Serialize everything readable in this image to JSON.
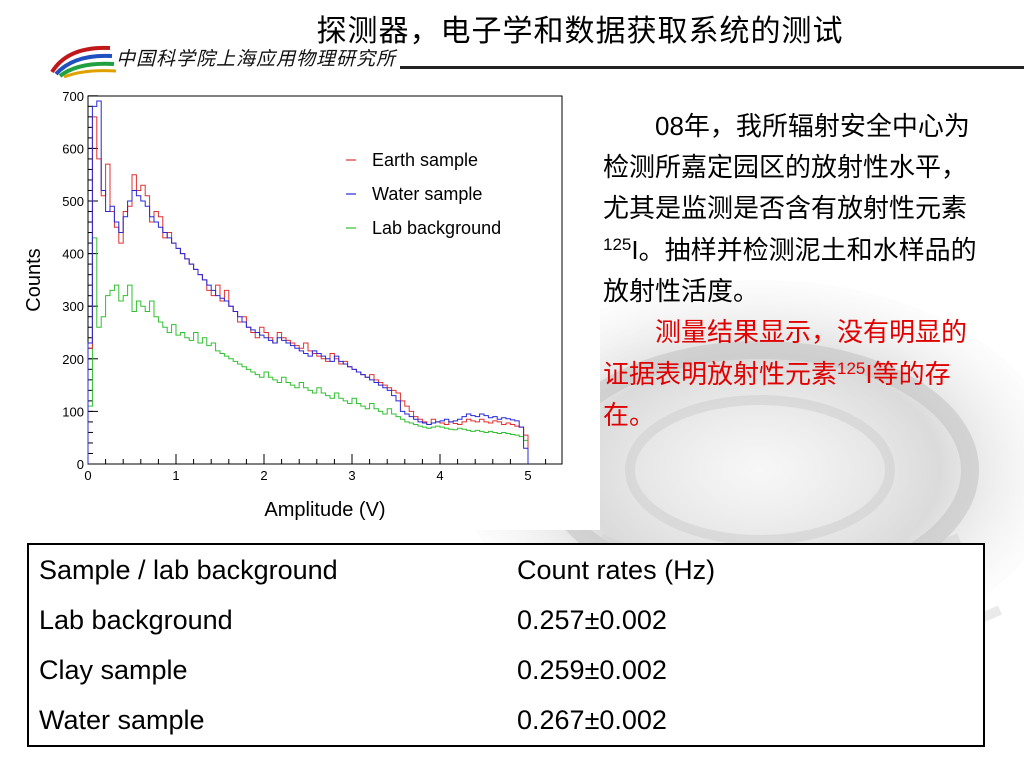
{
  "slide": {
    "title": "探测器，电子学和数据获取系统的测试",
    "institute": "中国科学院上海应用物理研究所"
  },
  "text_block": {
    "para1_year": "08",
    "para1_main": "年，我所辐射安全中心为检测所嘉定园区的放射性水平，尤其是监测是否含有放射性元素",
    "para1_mass": "125",
    "para1_elem": "I",
    "para1_tail": "。抽样并检测泥土和水样品的放射性活度。",
    "para2_main": "测量结果显示，没有明显的证据表明放射性元素",
    "para2_mass": "125",
    "para2_elem": "I",
    "para2_tail": "等的存在。"
  },
  "table": {
    "headers": [
      "Sample / lab background",
      "Count rates (Hz)"
    ],
    "rows": [
      [
        "Lab background",
        "0.257±0.002"
      ],
      [
        "Clay sample",
        "0.259±0.002"
      ],
      [
        "Water sample",
        "0.267±0.002"
      ]
    ]
  },
  "colors": {
    "earth": "#e03030",
    "water": "#2828d8",
    "lab": "#30c030",
    "highlight_text": "#e00000"
  },
  "chart_data": {
    "type": "line",
    "step": true,
    "xlabel": "Amplitude (V)",
    "ylabel": "Counts",
    "xlim": [
      0,
      5.4
    ],
    "ylim": [
      0,
      700
    ],
    "x_ticks": [
      0,
      1,
      2,
      3,
      4,
      5
    ],
    "y_ticks": [
      0,
      100,
      200,
      300,
      400,
      500,
      600,
      700
    ],
    "grid": false,
    "legend_position": "top-right",
    "bin_width": 0.05,
    "x_start": 0.0,
    "series": [
      {
        "name": "Earth sample",
        "color_key": "earth",
        "values": [
          220,
          660,
          580,
          510,
          570,
          480,
          450,
          420,
          480,
          490,
          550,
          520,
          530,
          510,
          460,
          480,
          470,
          430,
          440,
          420,
          410,
          400,
          390,
          380,
          370,
          360,
          350,
          330,
          320,
          340,
          310,
          330,
          300,
          290,
          270,
          280,
          260,
          250,
          240,
          260,
          250,
          240,
          230,
          250,
          240,
          235,
          230,
          225,
          220,
          230,
          215,
          210,
          205,
          200,
          195,
          210,
          200,
          190,
          195,
          185,
          180,
          175,
          170,
          165,
          170,
          160,
          155,
          150,
          145,
          140,
          135,
          120,
          110,
          100,
          90,
          85,
          80,
          75,
          85,
          80,
          78,
          75,
          80,
          77,
          75,
          80,
          85,
          82,
          80,
          85,
          80,
          78,
          82,
          80,
          75,
          78,
          75,
          72,
          70,
          55
        ]
      },
      {
        "name": "Water sample",
        "color_key": "water",
        "values": [
          230,
          680,
          690,
          520,
          480,
          490,
          460,
          440,
          470,
          500,
          520,
          510,
          500,
          490,
          470,
          460,
          450,
          440,
          430,
          420,
          410,
          400,
          390,
          380,
          370,
          360,
          350,
          340,
          330,
          320,
          315,
          310,
          300,
          290,
          280,
          270,
          260,
          255,
          250,
          245,
          240,
          235,
          230,
          240,
          235,
          230,
          225,
          220,
          215,
          210,
          205,
          215,
          210,
          205,
          200,
          195,
          205,
          195,
          190,
          185,
          180,
          175,
          170,
          165,
          160,
          155,
          150,
          145,
          140,
          130,
          120,
          100,
          95,
          90,
          85,
          80,
          78,
          75,
          78,
          80,
          82,
          85,
          80,
          82,
          85,
          90,
          95,
          92,
          90,
          95,
          92,
          88,
          90,
          85,
          88,
          86,
          84,
          82,
          70,
          30
        ]
      },
      {
        "name": "Lab background",
        "color_key": "lab",
        "values": [
          110,
          430,
          260,
          280,
          320,
          330,
          340,
          310,
          320,
          340,
          290,
          310,
          300,
          290,
          310,
          280,
          270,
          260,
          250,
          265,
          245,
          250,
          240,
          235,
          250,
          230,
          240,
          225,
          230,
          215,
          210,
          205,
          200,
          195,
          190,
          185,
          180,
          175,
          170,
          165,
          175,
          165,
          160,
          155,
          165,
          155,
          150,
          145,
          155,
          145,
          140,
          135,
          145,
          135,
          130,
          125,
          135,
          125,
          120,
          115,
          125,
          115,
          110,
          105,
          115,
          105,
          100,
          95,
          105,
          95,
          90,
          85,
          80,
          78,
          75,
          72,
          70,
          68,
          70,
          72,
          70,
          68,
          66,
          65,
          68,
          66,
          64,
          62,
          64,
          62,
          60,
          62,
          60,
          58,
          60,
          58,
          56,
          55,
          52,
          45
        ]
      }
    ]
  }
}
